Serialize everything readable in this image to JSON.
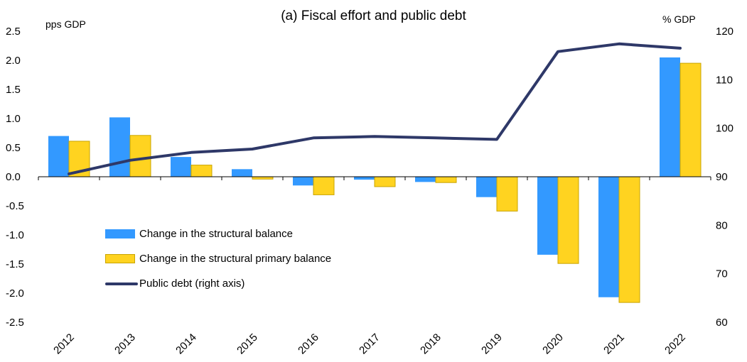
{
  "chart_data": {
    "type": "bar",
    "title": "(a) Fiscal effort and public debt",
    "left_axis_label": "pps GDP",
    "right_axis_label": "% GDP",
    "categories": [
      "2012",
      "2013",
      "2014",
      "2015",
      "2016",
      "2017",
      "2018",
      "2019",
      "2020",
      "2021",
      "2022"
    ],
    "series": [
      {
        "name": "Change in the structural balance",
        "kind": "bar",
        "axis": "left",
        "color": "#3399FF",
        "values": [
          0.7,
          1.02,
          0.34,
          0.13,
          -0.15,
          -0.05,
          -0.09,
          -0.35,
          -1.34,
          -2.07,
          2.05
        ]
      },
      {
        "name": "Change in the structural primary balance",
        "kind": "bar",
        "axis": "left",
        "color": "#FFD320",
        "values": [
          0.61,
          0.71,
          0.2,
          -0.04,
          -0.31,
          -0.17,
          -0.1,
          -0.59,
          -1.49,
          -2.16,
          1.95
        ]
      },
      {
        "name": "Public debt (right axis)",
        "kind": "line",
        "axis": "right",
        "color": "#2E3868",
        "values": [
          90.6,
          93.4,
          95.0,
          95.7,
          98.0,
          98.3,
          98.0,
          97.7,
          115.8,
          117.4,
          116.5
        ]
      }
    ],
    "left_ylim": [
      -2.5,
      2.5
    ],
    "left_ticks": [
      "2.5",
      "2.0",
      "1.5",
      "1.0",
      "0.5",
      "0.0",
      "-0.5",
      "-1.0",
      "-1.5",
      "-2.0",
      "-2.5"
    ],
    "right_ylim": [
      60,
      120
    ],
    "right_ticks": [
      "120",
      "110",
      "100",
      "90",
      "80",
      "70",
      "60"
    ],
    "grid": false,
    "legend_position": "bottom-left"
  }
}
